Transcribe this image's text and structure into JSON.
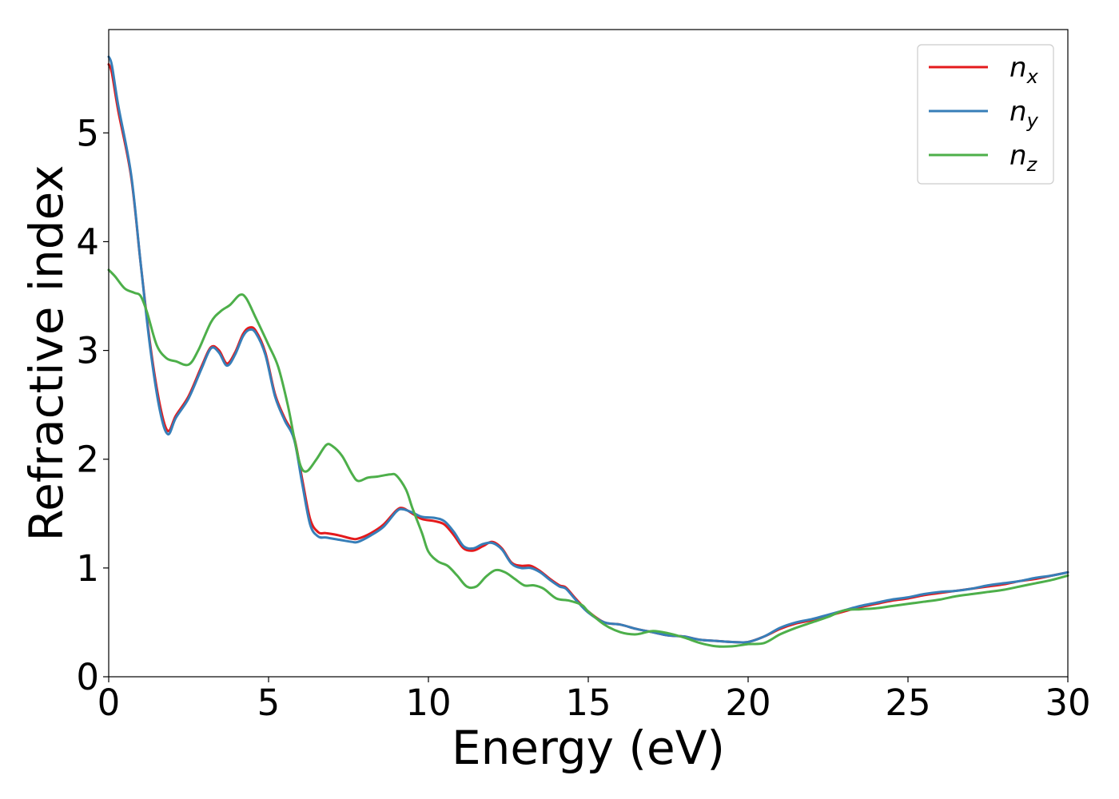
{
  "chart_data": {
    "type": "line",
    "title": "",
    "xlabel": "Energy (eV)",
    "ylabel": "Refractive index",
    "xlim": [
      0,
      30
    ],
    "ylim": [
      0,
      5.95
    ],
    "xticks": [
      0,
      5,
      10,
      15,
      20,
      25,
      30
    ],
    "yticks": [
      0,
      1,
      2,
      3,
      4,
      5
    ],
    "grid": false,
    "legend_position": "top-right",
    "series": [
      {
        "name": "n_x",
        "legend_base": "n",
        "legend_sub": "x",
        "color": "#e41a1c",
        "x": [
          0,
          0.1,
          0.3,
          0.7,
          1.0,
          1.3,
          1.6,
          1.85,
          2.1,
          2.5,
          2.9,
          3.2,
          3.45,
          3.7,
          3.95,
          4.2,
          4.4,
          4.6,
          4.9,
          5.2,
          5.5,
          5.8,
          6.05,
          6.3,
          6.55,
          6.8,
          7.2,
          7.6,
          7.8,
          8.2,
          8.6,
          9.0,
          9.2,
          9.5,
          9.8,
          10.2,
          10.5,
          10.8,
          11.1,
          11.4,
          11.7,
          12.0,
          12.3,
          12.6,
          12.9,
          13.2,
          13.5,
          13.8,
          14.1,
          14.3,
          14.6,
          15.0,
          15.5,
          16.0,
          16.5,
          17.0,
          17.5,
          18.0,
          18.5,
          19.0,
          19.5,
          20.0,
          20.5,
          21.0,
          21.5,
          22.0,
          22.5,
          23.0,
          23.5,
          24.0,
          24.5,
          25.0,
          25.5,
          26.0,
          26.5,
          27.0,
          27.5,
          28.0,
          28.5,
          29.0,
          29.5,
          30.0
        ],
        "y": [
          5.63,
          5.55,
          5.2,
          4.6,
          3.8,
          3.05,
          2.5,
          2.26,
          2.4,
          2.58,
          2.85,
          3.03,
          3.0,
          2.88,
          2.98,
          3.15,
          3.21,
          3.18,
          2.98,
          2.6,
          2.38,
          2.2,
          1.82,
          1.45,
          1.33,
          1.32,
          1.3,
          1.27,
          1.27,
          1.32,
          1.4,
          1.53,
          1.55,
          1.5,
          1.45,
          1.43,
          1.4,
          1.3,
          1.18,
          1.16,
          1.2,
          1.24,
          1.18,
          1.05,
          1.02,
          1.02,
          0.97,
          0.9,
          0.84,
          0.82,
          0.72,
          0.6,
          0.5,
          0.48,
          0.44,
          0.41,
          0.38,
          0.37,
          0.34,
          0.33,
          0.32,
          0.32,
          0.37,
          0.44,
          0.49,
          0.52,
          0.56,
          0.6,
          0.64,
          0.67,
          0.7,
          0.72,
          0.75,
          0.77,
          0.79,
          0.81,
          0.83,
          0.85,
          0.88,
          0.9,
          0.93,
          0.96
        ]
      },
      {
        "name": "n_y",
        "legend_base": "n",
        "legend_sub": "y",
        "color": "#377eb8",
        "x": [
          0,
          0.1,
          0.3,
          0.7,
          1.0,
          1.3,
          1.6,
          1.85,
          2.1,
          2.5,
          2.9,
          3.2,
          3.45,
          3.7,
          3.95,
          4.2,
          4.4,
          4.6,
          4.9,
          5.2,
          5.5,
          5.8,
          6.05,
          6.3,
          6.55,
          6.8,
          7.2,
          7.6,
          7.8,
          8.2,
          8.6,
          9.0,
          9.2,
          9.5,
          9.8,
          10.2,
          10.5,
          10.8,
          11.1,
          11.4,
          11.7,
          12.0,
          12.3,
          12.6,
          12.9,
          13.2,
          13.5,
          13.8,
          14.1,
          14.3,
          14.6,
          15.0,
          15.5,
          16.0,
          16.5,
          17.0,
          17.5,
          18.0,
          18.5,
          19.0,
          19.5,
          20.0,
          20.5,
          21.0,
          21.5,
          22.0,
          22.5,
          23.0,
          23.5,
          24.0,
          24.5,
          25.0,
          25.5,
          26.0,
          26.5,
          27.0,
          27.5,
          28.0,
          28.5,
          29.0,
          29.5,
          30.0
        ],
        "y": [
          5.7,
          5.62,
          5.25,
          4.62,
          3.8,
          3.02,
          2.45,
          2.23,
          2.38,
          2.56,
          2.83,
          3.02,
          2.98,
          2.86,
          2.96,
          3.13,
          3.19,
          3.16,
          2.96,
          2.58,
          2.36,
          2.18,
          1.78,
          1.4,
          1.29,
          1.28,
          1.26,
          1.24,
          1.24,
          1.3,
          1.38,
          1.52,
          1.54,
          1.51,
          1.47,
          1.46,
          1.43,
          1.33,
          1.2,
          1.18,
          1.22,
          1.23,
          1.17,
          1.04,
          1.0,
          1.0,
          0.96,
          0.89,
          0.83,
          0.81,
          0.71,
          0.59,
          0.5,
          0.48,
          0.44,
          0.41,
          0.38,
          0.37,
          0.34,
          0.33,
          0.32,
          0.32,
          0.37,
          0.45,
          0.5,
          0.53,
          0.57,
          0.61,
          0.65,
          0.68,
          0.71,
          0.73,
          0.76,
          0.78,
          0.79,
          0.81,
          0.84,
          0.86,
          0.88,
          0.91,
          0.93,
          0.96
        ]
      },
      {
        "name": "n_z",
        "legend_base": "n",
        "legend_sub": "z",
        "color": "#4daf4a",
        "x": [
          0,
          0.2,
          0.5,
          0.8,
          1.0,
          1.2,
          1.5,
          1.8,
          2.1,
          2.5,
          2.8,
          3.2,
          3.5,
          3.8,
          4.1,
          4.3,
          4.6,
          5.0,
          5.3,
          5.6,
          5.8,
          6.0,
          6.2,
          6.5,
          6.8,
          7.0,
          7.3,
          7.6,
          7.8,
          8.1,
          8.4,
          8.8,
          9.0,
          9.3,
          9.5,
          9.8,
          10.0,
          10.3,
          10.6,
          10.9,
          11.2,
          11.5,
          11.8,
          12.1,
          12.4,
          12.7,
          13.0,
          13.3,
          13.6,
          14.0,
          14.4,
          14.8,
          15.0,
          15.5,
          16.0,
          16.5,
          17.0,
          17.5,
          18.0,
          18.5,
          19.0,
          19.5,
          20.0,
          20.5,
          21.0,
          21.5,
          22.0,
          22.5,
          23.0,
          23.5,
          24.0,
          24.5,
          25.0,
          25.5,
          26.0,
          26.5,
          27.0,
          27.5,
          28.0,
          28.5,
          29.0,
          29.5,
          30.0
        ],
        "y": [
          3.74,
          3.68,
          3.57,
          3.53,
          3.5,
          3.35,
          3.05,
          2.93,
          2.9,
          2.87,
          3.0,
          3.26,
          3.36,
          3.42,
          3.51,
          3.48,
          3.3,
          3.05,
          2.85,
          2.5,
          2.2,
          1.94,
          1.89,
          2.0,
          2.13,
          2.12,
          2.03,
          1.87,
          1.8,
          1.83,
          1.84,
          1.86,
          1.85,
          1.72,
          1.55,
          1.32,
          1.15,
          1.06,
          1.02,
          0.93,
          0.83,
          0.83,
          0.92,
          0.98,
          0.96,
          0.9,
          0.84,
          0.84,
          0.81,
          0.72,
          0.7,
          0.66,
          0.6,
          0.48,
          0.41,
          0.39,
          0.42,
          0.4,
          0.36,
          0.31,
          0.28,
          0.28,
          0.3,
          0.31,
          0.39,
          0.45,
          0.5,
          0.55,
          0.61,
          0.62,
          0.63,
          0.65,
          0.67,
          0.69,
          0.71,
          0.74,
          0.76,
          0.78,
          0.8,
          0.83,
          0.86,
          0.89,
          0.93
        ]
      }
    ]
  }
}
